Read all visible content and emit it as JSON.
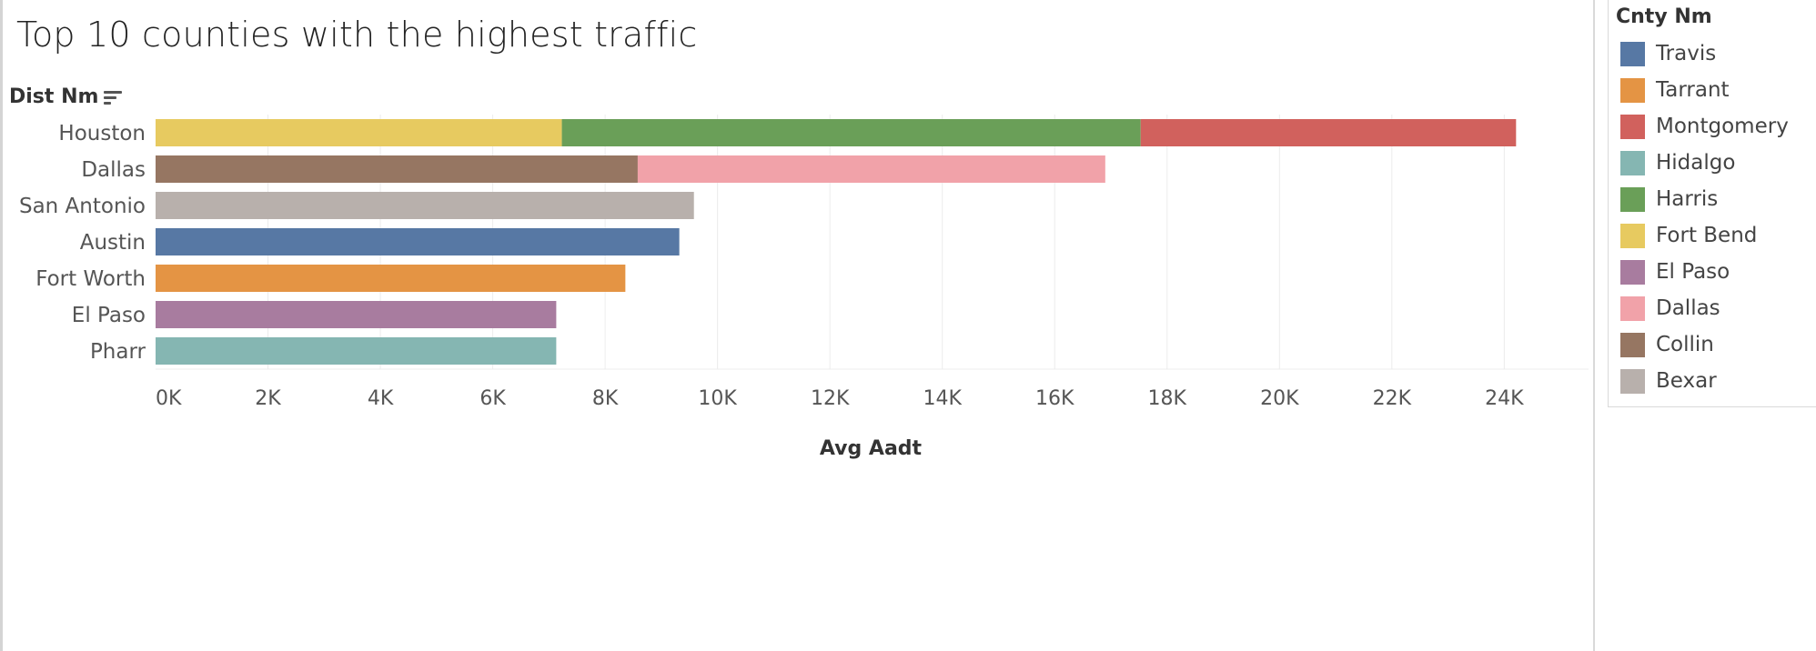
{
  "title": "Top 10 counties with the highest traffic",
  "row_dimension": "Dist Nm",
  "legend": {
    "title": "Cnty Nm",
    "items": [
      {
        "label": "Travis",
        "color": "#5778a4"
      },
      {
        "label": "Tarrant",
        "color": "#e49444"
      },
      {
        "label": "Montgomery",
        "color": "#d1615d"
      },
      {
        "label": "Hidalgo",
        "color": "#85b6b2"
      },
      {
        "label": "Harris",
        "color": "#6a9f58"
      },
      {
        "label": "Fort Bend",
        "color": "#e7ca60"
      },
      {
        "label": "El Paso",
        "color": "#a87c9f"
      },
      {
        "label": "Dallas",
        "color": "#f1a2a9"
      },
      {
        "label": "Collin",
        "color": "#967662"
      },
      {
        "label": "Bexar",
        "color": "#b8b0ac"
      }
    ]
  },
  "chart_data": {
    "type": "bar",
    "orientation": "horizontal",
    "stacked": true,
    "xlabel": "Avg Aadt",
    "ylabel": "Dist Nm",
    "xlim": [
      0,
      25500
    ],
    "x_ticks": [
      "0K",
      "2K",
      "4K",
      "6K",
      "8K",
      "10K",
      "12K",
      "14K",
      "16K",
      "18K",
      "20K",
      "22K",
      "24K"
    ],
    "x_tick_values": [
      0,
      2000,
      4000,
      6000,
      8000,
      10000,
      12000,
      14000,
      16000,
      18000,
      20000,
      22000,
      24000
    ],
    "grid": "vertical",
    "legend_position": "right",
    "categories": [
      "Houston",
      "Dallas",
      "San Antonio",
      "Austin",
      "Fort Worth",
      "El Paso",
      "Pharr"
    ],
    "bars": [
      {
        "category": "Houston",
        "segments": [
          {
            "county": "Fort Bend",
            "value": 7230
          },
          {
            "county": "Harris",
            "value": 10300
          },
          {
            "county": "Montgomery",
            "value": 6680
          }
        ]
      },
      {
        "category": "Dallas",
        "segments": [
          {
            "county": "Collin",
            "value": 8580
          },
          {
            "county": "Dallas",
            "value": 8320
          }
        ]
      },
      {
        "category": "San Antonio",
        "segments": [
          {
            "county": "Bexar",
            "value": 9580
          }
        ]
      },
      {
        "category": "Austin",
        "segments": [
          {
            "county": "Travis",
            "value": 9320
          }
        ]
      },
      {
        "category": "Fort Worth",
        "segments": [
          {
            "county": "Tarrant",
            "value": 8360
          }
        ]
      },
      {
        "category": "El Paso",
        "segments": [
          {
            "county": "El Paso",
            "value": 7130
          }
        ]
      },
      {
        "category": "Pharr",
        "segments": [
          {
            "county": "Hidalgo",
            "value": 7130
          }
        ]
      }
    ]
  }
}
